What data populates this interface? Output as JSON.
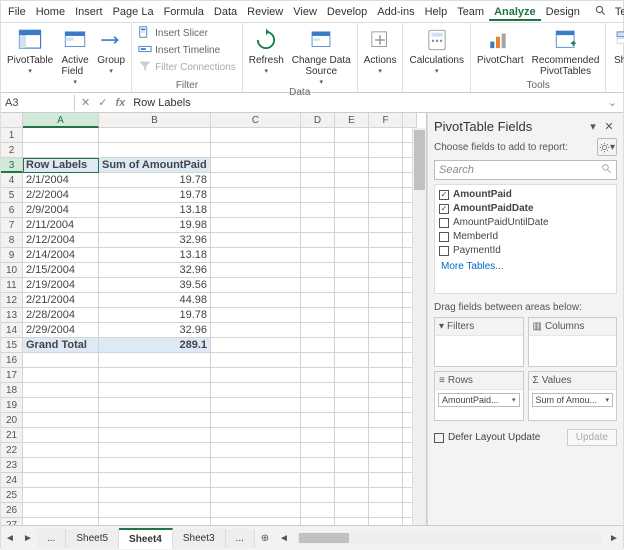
{
  "menu": {
    "tabs": [
      "File",
      "Home",
      "Insert",
      "Page La",
      "Formula",
      "Data",
      "Review",
      "View",
      "Develop",
      "Add-ins",
      "Help",
      "Team",
      "Analyze",
      "Design"
    ],
    "active": "Analyze",
    "tellme": "Tell me"
  },
  "ribbon": {
    "group1": {
      "pivotTable": "PivotTable",
      "activeField": "Active\nField",
      "group": "Group",
      "arrow": "→"
    },
    "filter": {
      "slicer": "Insert Slicer",
      "timeline": "Insert Timeline",
      "connections": "Filter Connections",
      "label": "Filter"
    },
    "data": {
      "refresh": "Refresh",
      "changeData": "Change Data\nSource",
      "label": "Data"
    },
    "actions": "Actions",
    "calculations": "Calculations",
    "tools": {
      "pivotChart": "PivotChart",
      "recommended": "Recommended\nPivotTables",
      "label": "Tools"
    },
    "show": "Show"
  },
  "namebox": {
    "ref": "A3",
    "fx": "fx",
    "formula": "Row Labels"
  },
  "sheet": {
    "cols": [
      "A",
      "B",
      "C",
      "D",
      "E",
      "F"
    ],
    "hdrA": "Row Labels",
    "hdrB": "Sum of AmountPaid",
    "rows": [
      {
        "r": 4,
        "a": "2/1/2004",
        "b": "19.78"
      },
      {
        "r": 5,
        "a": "2/2/2004",
        "b": "19.78"
      },
      {
        "r": 6,
        "a": "2/9/2004",
        "b": "13.18"
      },
      {
        "r": 7,
        "a": "2/11/2004",
        "b": "19.98"
      },
      {
        "r": 8,
        "a": "2/12/2004",
        "b": "32.96"
      },
      {
        "r": 9,
        "a": "2/14/2004",
        "b": "13.18"
      },
      {
        "r": 10,
        "a": "2/15/2004",
        "b": "32.96"
      },
      {
        "r": 11,
        "a": "2/19/2004",
        "b": "39.56"
      },
      {
        "r": 12,
        "a": "2/21/2004",
        "b": "44.98"
      },
      {
        "r": 13,
        "a": "2/28/2004",
        "b": "19.78"
      },
      {
        "r": 14,
        "a": "2/29/2004",
        "b": "32.96"
      }
    ],
    "grandLabel": "Grand Total",
    "grandValue": "289.1",
    "emptyFrom": 16,
    "emptyTo": 27
  },
  "pane": {
    "title": "PivotTable Fields",
    "sub": "Choose fields to add to report:",
    "searchPlaceholder": "Search",
    "fields": [
      {
        "label": "AmountPaid",
        "checked": true,
        "bold": true
      },
      {
        "label": "AmountPaidDate",
        "checked": true,
        "bold": true
      },
      {
        "label": "AmountPaidUntilDate",
        "checked": false,
        "bold": false
      },
      {
        "label": "MemberId",
        "checked": false,
        "bold": false
      },
      {
        "label": "PaymentId",
        "checked": false,
        "bold": false
      }
    ],
    "more": "More Tables...",
    "drag": "Drag fields between areas below:",
    "areas": {
      "filters": "Filters",
      "columns": "Columns",
      "rows": "Rows",
      "values": "Values",
      "rowChip": "AmountPaid...",
      "valChip": "Sum of Amou..."
    },
    "defer": "Defer Layout Update",
    "update": "Update"
  },
  "tabs": {
    "sheets": [
      "Sheet5",
      "Sheet4",
      "Sheet3"
    ],
    "active": "Sheet4",
    "ell": "..."
  },
  "colors": {
    "accent": "#217346"
  }
}
